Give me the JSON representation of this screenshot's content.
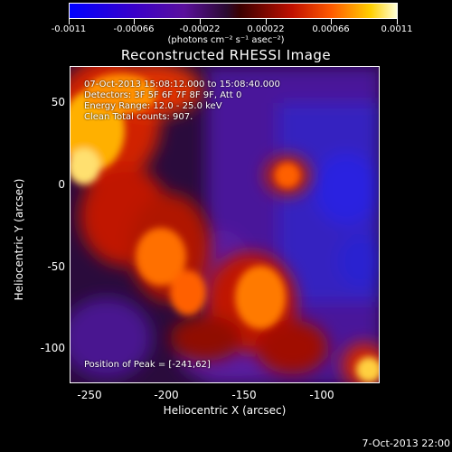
{
  "colorbar": {
    "tick_labels": [
      "-0.0011",
      "-0.00066",
      "-0.00022",
      "0.00022",
      "0.00066",
      "0.0011"
    ],
    "units": "(photons cm⁻² s⁻¹ asec⁻²)"
  },
  "title": "Reconstructed RHESSI Image",
  "info": {
    "time": "07-Oct-2013 15:08:12.000 to 15:08:40.000",
    "detectors": "Detectors: 3F 5F 6F 7F 8F 9F, Att 0",
    "energy": "Energy Range: 12.0 - 25.0 keV",
    "method": "Clean     Total counts: 907.",
    "peak": "Position of Peak = [-241,62]"
  },
  "axes": {
    "xlabel": "Heliocentric X (arcsec)",
    "ylabel": "Heliocentric Y (arcsec)",
    "xticks": [
      "-250",
      "-200",
      "-150",
      "-100"
    ],
    "yticks": [
      "50",
      "0",
      "-50",
      "-100"
    ],
    "xlim": [
      -262,
      -62
    ],
    "ylim": [
      -120,
      73
    ]
  },
  "footer": {
    "date": "7-Oct-2013 22:00"
  },
  "colors": {
    "hot": "#ffd000",
    "cool": "#3a00c8",
    "background": "#000000"
  }
}
